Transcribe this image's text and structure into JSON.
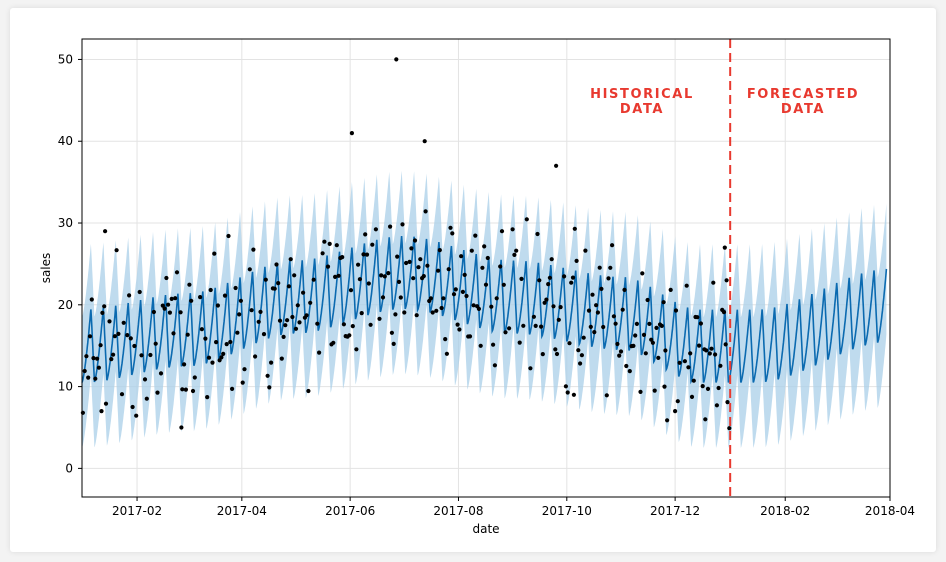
{
  "chart_data": {
    "type": "line",
    "xlabel": "date",
    "ylabel": "sales",
    "x_range": [
      "2017-01-01",
      "2018-04-01"
    ],
    "ylim": [
      -3.5,
      52.5
    ],
    "grid": true,
    "x_ticks": [
      "2017-02",
      "2017-04",
      "2017-06",
      "2017-08",
      "2017-10",
      "2017-12",
      "2018-02",
      "2018-04"
    ],
    "y_ticks": [
      0,
      10,
      20,
      30,
      40,
      50
    ],
    "forecast_start": "2018-01-01",
    "annotations": [
      {
        "line1": "HISTORICAL",
        "line2": "DATA"
      },
      {
        "line1": "FORECASTED",
        "line2": "DATA"
      }
    ],
    "trend": [
      {
        "date": "2017-01-01",
        "value": 15
      },
      {
        "date": "2017-03-01",
        "value": 17
      },
      {
        "date": "2017-05-01",
        "value": 21
      },
      {
        "date": "2017-07-01",
        "value": 24
      },
      {
        "date": "2017-09-01",
        "value": 21
      },
      {
        "date": "2017-11-01",
        "value": 19
      },
      {
        "date": "2017-12-15",
        "value": 15
      },
      {
        "date": "2018-01-15",
        "value": 15
      },
      {
        "date": "2018-04-01",
        "value": 20
      }
    ],
    "weekly_amplitude": 4.5,
    "uncertainty_halfwidth": 8,
    "observed_highlights": [
      {
        "date": "2017-06-27",
        "value": 50
      },
      {
        "date": "2017-06-02",
        "value": 41
      },
      {
        "date": "2017-07-13",
        "value": 40
      },
      {
        "date": "2017-09-25",
        "value": 37
      },
      {
        "date": "2017-01-14",
        "value": 29
      },
      {
        "date": "2017-02-26",
        "value": 5
      },
      {
        "date": "2017-01-12",
        "value": 7
      },
      {
        "date": "2017-12-18",
        "value": 6
      },
      {
        "date": "2017-12-01",
        "value": 7
      },
      {
        "date": "2017-11-25",
        "value": 10
      },
      {
        "date": "2017-10-05",
        "value": 9
      },
      {
        "date": "2017-12-29",
        "value": 27
      },
      {
        "date": "2017-12-30",
        "value": 23
      }
    ],
    "colors": {
      "band": "#a9cfe8",
      "forecast_line": "#0b6ab0",
      "points": "#000000",
      "changepoint": "#e8392f",
      "annotation": "#e8392f"
    }
  }
}
